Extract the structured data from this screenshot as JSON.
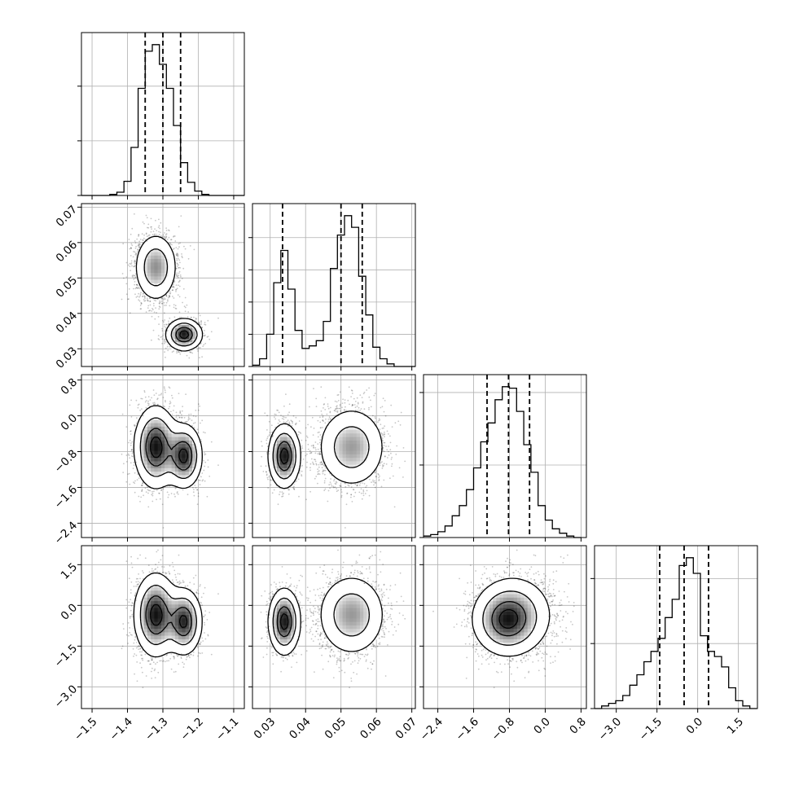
{
  "chart_data": {
    "type": "corner",
    "grid": true,
    "params": [
      {
        "ticks": [
          -1.5,
          -1.4,
          -1.3,
          -1.2,
          -1.1
        ],
        "tick_labels": [
          "−1.5",
          "−1.4",
          "−1.3",
          "−1.2",
          "−1.1"
        ],
        "xlim": [
          -1.53,
          -1.07
        ],
        "quantiles": [
          -1.35,
          -1.3,
          -1.25
        ],
        "hist": {
          "edges": [
            -1.53,
            -1.51,
            -1.49,
            -1.47,
            -1.45,
            -1.43,
            -1.41,
            -1.39,
            -1.37,
            -1.35,
            -1.33,
            -1.31,
            -1.29,
            -1.27,
            -1.25,
            -1.23,
            -1.21,
            -1.19,
            -1.17,
            -1.15,
            -1.13,
            -1.11,
            -1.09,
            -1.07
          ],
          "counts": [
            0,
            0,
            0,
            0,
            1,
            3,
            13,
            44,
            98,
            132,
            138,
            120,
            98,
            64,
            30,
            12,
            4,
            1,
            0,
            0,
            0,
            0,
            0
          ]
        }
      },
      {
        "ticks": [
          0.03,
          0.04,
          0.05,
          0.06,
          0.07
        ],
        "tick_labels": [
          "0.03",
          "0.04",
          "0.05",
          "0.06",
          "0.07"
        ],
        "xlim": [
          0.025,
          0.071
        ],
        "quantiles": [
          0.0335,
          0.05,
          0.056
        ],
        "hist": {
          "edges": [
            0.025,
            0.027,
            0.029,
            0.031,
            0.033,
            0.035,
            0.037,
            0.039,
            0.041,
            0.043,
            0.045,
            0.047,
            0.049,
            0.051,
            0.053,
            0.055,
            0.057,
            0.059,
            0.061,
            0.063,
            0.065,
            0.067,
            0.069,
            0.071
          ],
          "counts": [
            1,
            6,
            25,
            65,
            90,
            60,
            28,
            14,
            16,
            20,
            35,
            76,
            102,
            117,
            108,
            70,
            40,
            15,
            6,
            2,
            0,
            0,
            0
          ]
        }
      },
      {
        "ticks": [
          -2.4,
          -1.6,
          -0.8,
          0.0,
          0.8
        ],
        "tick_labels": [
          "−2.4",
          "−1.6",
          "−0.8",
          "0.0",
          "0.8"
        ],
        "xlim": [
          -2.72,
          0.92
        ],
        "quantiles": [
          -1.3,
          -0.82,
          -0.35
        ],
        "hist": {
          "edges": [
            -2.72,
            -2.56,
            -2.4,
            -2.24,
            -2.08,
            -1.92,
            -1.76,
            -1.6,
            -1.44,
            -1.28,
            -1.12,
            -0.96,
            -0.8,
            -0.64,
            -0.48,
            -0.32,
            -0.16,
            0.0,
            0.16,
            0.32,
            0.48,
            0.64,
            0.8
          ],
          "counts": [
            1,
            2,
            4,
            8,
            15,
            22,
            33,
            48,
            66,
            79,
            95,
            104,
            103,
            87,
            64,
            45,
            22,
            12,
            6,
            3,
            1,
            0
          ]
        }
      },
      {
        "ticks": [
          -3.0,
          -1.5,
          0.0,
          1.5
        ],
        "tick_labels": [
          "−3.0",
          "−1.5",
          "0.0",
          "1.5"
        ],
        "xlim": [
          -3.8,
          2.2
        ],
        "quantiles": [
          -1.4,
          -0.5,
          0.4
        ],
        "hist": {
          "edges": [
            -3.8,
            -3.54,
            -3.28,
            -3.02,
            -2.76,
            -2.5,
            -2.24,
            -1.98,
            -1.72,
            -1.46,
            -1.2,
            -0.94,
            -0.68,
            -0.42,
            -0.16,
            0.1,
            0.36,
            0.62,
            0.88,
            1.14,
            1.4,
            1.66,
            1.92,
            2.18
          ],
          "counts": [
            0,
            1,
            2,
            3,
            5,
            9,
            13,
            18,
            22,
            27,
            35,
            42,
            55,
            58,
            52,
            28,
            22,
            20,
            16,
            8,
            3,
            1,
            0
          ]
        }
      }
    ],
    "hist_yticks": [
      [
        0,
        50,
        100
      ],
      [
        0,
        25,
        50,
        75,
        100
      ],
      [
        0,
        50,
        100
      ],
      [
        0,
        25,
        50
      ]
    ],
    "modes": [
      {
        "weight": 0.62,
        "mean": [
          -1.32,
          0.053,
          -0.7,
          -0.35
        ],
        "sd": [
          0.03,
          0.0048,
          0.45,
          0.75
        ]
      },
      {
        "weight": 0.38,
        "mean": [
          -1.24,
          0.034,
          -0.9,
          -0.6
        ],
        "sd": [
          0.025,
          0.0022,
          0.35,
          0.6
        ]
      }
    ],
    "contour_levels": [
      0.12,
      0.35,
      0.65,
      0.88
    ]
  }
}
